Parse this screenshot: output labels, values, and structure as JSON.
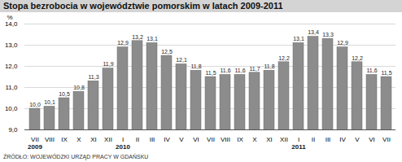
{
  "chart_data": {
    "type": "bar",
    "title": "Stopa bezrobocia w województwie pomorskim w latach 2009-2011",
    "y_label": "%",
    "categories": [
      "VII",
      "VIII",
      "IX",
      "X",
      "XI",
      "XII",
      "I",
      "II",
      "III",
      "IV",
      "V",
      "VI",
      "VII",
      "VIII",
      "IX",
      "X",
      "XI",
      "XII",
      "I",
      "II",
      "III",
      "IV",
      "V",
      "VI",
      "VII"
    ],
    "years": [
      "2009",
      "2010",
      "2011"
    ],
    "values": [
      10.0,
      10.1,
      10.5,
      10.8,
      11.3,
      11.9,
      12.9,
      13.2,
      13.1,
      12.5,
      12.1,
      11.8,
      11.5,
      11.6,
      11.6,
      11.7,
      11.8,
      12.2,
      13.1,
      13.4,
      13.3,
      12.9,
      12.2,
      11.6,
      11.5
    ],
    "value_labels": [
      "10,0",
      "10,1",
      "10,5",
      "10,8",
      "11,3",
      "11,9",
      "12,9",
      "13,2",
      "13,1",
      "12,5",
      "12,1",
      "11,8",
      "11,5",
      "11,6",
      "11,6",
      "11,7",
      "11,8",
      "12,2",
      "13,1",
      "13,4",
      "13,3",
      "12,9",
      "12,2",
      "11,6",
      "11,5"
    ],
    "color": "#8c8c8c",
    "ylim": [
      9,
      14
    ],
    "yticks": [
      {
        "value": 9,
        "label": "9,0"
      },
      {
        "value": 10,
        "label": "10,0"
      },
      {
        "value": 11,
        "label": "11,0"
      },
      {
        "value": 12,
        "label": "12,0"
      },
      {
        "value": 13,
        "label": "13,0"
      },
      {
        "value": 14,
        "label": "14,0"
      }
    ],
    "grid": true,
    "data_labels": true,
    "source": "ŹRÓDŁO: WOJEWÓDZKI URZĄD PRACY W GDAŃSKU"
  }
}
